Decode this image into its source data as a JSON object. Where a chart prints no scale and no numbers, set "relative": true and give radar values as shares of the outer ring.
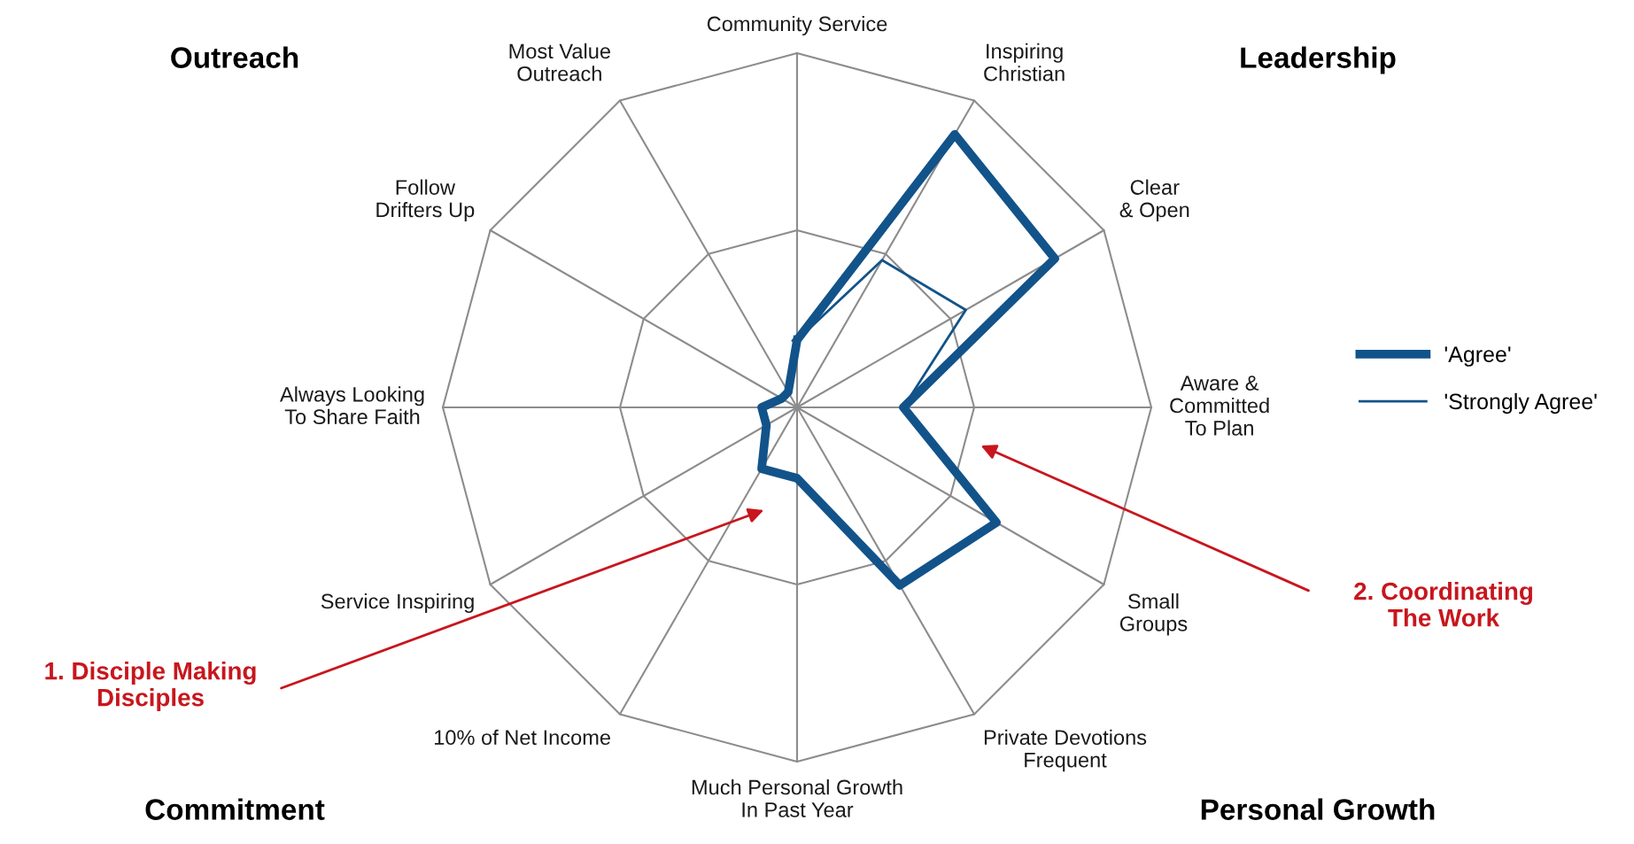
{
  "chart_data": {
    "type": "radar",
    "relative": true,
    "grid": true,
    "legend": "right",
    "marker": "none",
    "categories": [
      "Community Service",
      "Inspiring\nChristian",
      "Clear\n& Open",
      "Aware &\nCommitted\nTo Plan",
      "Small\nGroups",
      "Private Devotions\nFrequent",
      "Much Personal Growth\nIn Past Year",
      "10% of Net Income",
      "Service Inspiring",
      "Always Looking\nTo Share Faith",
      "Follow\nDrifters Up",
      "Most Value\nOutreach"
    ],
    "series": [
      {
        "name": "'Agree'",
        "color": "#12538a",
        "values": [
          0.19,
          0.89,
          0.84,
          0.3,
          0.65,
          0.58,
          0.2,
          0.2,
          0.1,
          0.1,
          0.05,
          0.05
        ]
      },
      {
        "name": "'Strongly Agree'",
        "color": "#12538a",
        "values": [
          0.19,
          0.48,
          0.55,
          0.3,
          0.65,
          0.58,
          0.2,
          0.2,
          0.1,
          0.1,
          0.05,
          0.05
        ]
      }
    ],
    "annotations": [
      "Outreach",
      "Leadership",
      "Commitment",
      "Personal Growth",
      "1. Disciple Making\nDisciples",
      "2. Coordinating\nThe Work"
    ]
  }
}
